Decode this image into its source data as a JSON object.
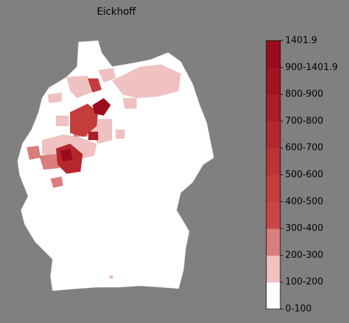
{
  "title": "Eickhoff",
  "legend": {
    "labels": [
      "0-100",
      "100-200",
      "200-300",
      "300-400",
      "400-500",
      "500-600",
      "600-700",
      "700-800",
      "800-900",
      "900-1401.9",
      "1401.9"
    ],
    "colors": [
      "#ffffff",
      "#efc1c1",
      "#da7d7d",
      "#ca4646",
      "#c43c3c",
      "#bd3235",
      "#b5272d",
      "#ad1c27",
      "#a51222",
      "#9b0a1d"
    ]
  }
}
